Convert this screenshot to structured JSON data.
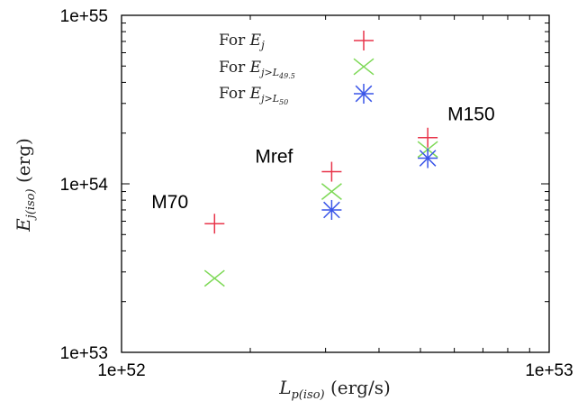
{
  "chart_data": {
    "type": "scatter",
    "x_scale": "log",
    "y_scale": "log",
    "xlim": [
      1e+52,
      1e+53
    ],
    "ylim": [
      1e+53,
      1e+55
    ],
    "x_ticks": [
      {
        "value": 1e+52,
        "label": "1e+52"
      },
      {
        "value": 1e+53,
        "label": "1e+53"
      }
    ],
    "y_ticks": [
      {
        "value": 1e+53,
        "label": "1e+53"
      },
      {
        "value": 1e+54,
        "label": "1e+54"
      },
      {
        "value": 1e+55,
        "label": "1e+55"
      }
    ],
    "xlabel": "L_p(iso) (erg/s)",
    "ylabel": "E_j(iso) (erg)",
    "grid": false,
    "legend_position": "top-center",
    "series": [
      {
        "name": "For E_j",
        "marker": "plus",
        "color": "#e8344a",
        "points": [
          {
            "x": 1.65e+52,
            "y": 5.8e+53
          },
          {
            "x": 3.1e+52,
            "y": 1.18e+54
          },
          {
            "x": 5.2e+52,
            "y": 1.88e+54
          }
        ]
      },
      {
        "name": "For E_j>L_49.5",
        "marker": "cross",
        "color": "#7ed957",
        "points": [
          {
            "x": 1.65e+52,
            "y": 2.75e+53
          },
          {
            "x": 3.1e+52,
            "y": 9e+53
          },
          {
            "x": 5.2e+52,
            "y": 1.6e+54
          }
        ]
      },
      {
        "name": "For E_j>L_50",
        "marker": "star",
        "color": "#3a55e8",
        "points": [
          {
            "x": 3.1e+52,
            "y": 7e+53
          },
          {
            "x": 5.2e+52,
            "y": 1.42e+54
          }
        ]
      }
    ],
    "annotations": [
      {
        "text": "M70",
        "x": 1.65e+52,
        "y": 5.8e+53
      },
      {
        "text": "Mref",
        "x": 3.1e+52,
        "y": 1.18e+54
      },
      {
        "text": "M150",
        "x": 5.2e+52,
        "y": 1.88e+54
      }
    ]
  }
}
